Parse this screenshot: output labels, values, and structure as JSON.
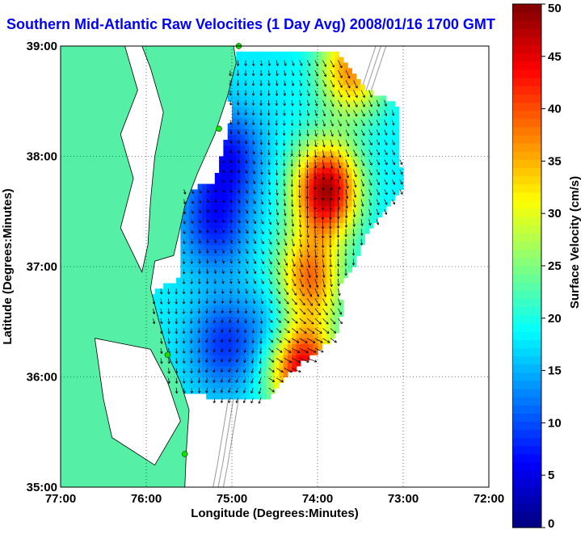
{
  "title": "Southern Mid-Atlantic Raw Velocities (1 Day Avg) 2008/01/16 1700 GMT",
  "colors": {
    "title": "#0000ff",
    "land": "#55f0a5",
    "coast": "#000000",
    "bathymetry": "#999999",
    "station": "#11dd00"
  },
  "chart_data": {
    "type": "heatmap",
    "title": "Southern Mid-Atlantic Raw Velocities (1 Day Avg) 2008/01/16 1700 GMT",
    "xlabel": "Longitude (Degrees:Minutes)",
    "ylabel": "Latitude (Degrees:Minutes)",
    "xlim": [
      -77,
      -72
    ],
    "ylim": [
      35,
      39
    ],
    "xticks": [
      {
        "value": -77,
        "label": "77:00"
      },
      {
        "value": -76,
        "label": "76:00"
      },
      {
        "value": -75,
        "label": "75:00"
      },
      {
        "value": -74,
        "label": "74:00"
      },
      {
        "value": -73,
        "label": "73:00"
      },
      {
        "value": -72,
        "label": "72:00"
      }
    ],
    "yticks": [
      {
        "value": 35,
        "label": "35:00"
      },
      {
        "value": 36,
        "label": "36:00"
      },
      {
        "value": 37,
        "label": "37:00"
      },
      {
        "value": 38,
        "label": "38:00"
      },
      {
        "value": 39,
        "label": "39:00"
      }
    ],
    "grid": true,
    "colorbar": {
      "label": "Surface Velocity (cm/s)",
      "range": [
        0,
        50
      ],
      "ticks": [
        0,
        5,
        10,
        15,
        20,
        25,
        30,
        35,
        40,
        45,
        50
      ],
      "colormap": "jet"
    },
    "coverage_lon_lat": [
      [
        -74.9,
        38.95
      ],
      [
        -73.8,
        38.95
      ],
      [
        -73.5,
        38.65
      ],
      [
        -73.05,
        38.45
      ],
      [
        -73.05,
        38.1
      ],
      [
        -73.0,
        37.7
      ],
      [
        -73.4,
        37.35
      ],
      [
        -73.55,
        37.05
      ],
      [
        -73.75,
        36.8
      ],
      [
        -73.7,
        36.6
      ],
      [
        -73.8,
        36.35
      ],
      [
        -74.4,
        36.0
      ],
      [
        -74.6,
        35.8
      ],
      [
        -75.0,
        35.78
      ],
      [
        -75.7,
        35.88
      ],
      [
        -75.9,
        36.3
      ],
      [
        -75.95,
        36.75
      ],
      [
        -75.6,
        36.9
      ],
      [
        -75.6,
        37.7
      ],
      [
        -75.2,
        37.75
      ],
      [
        -75.0,
        38.4
      ],
      [
        -75.1,
        38.8
      ]
    ],
    "velocity_maxima": [
      {
        "lon": -73.9,
        "lat": 37.7,
        "speed_cm_s": 48
      },
      {
        "lon": -74.2,
        "lat": 36.1,
        "speed_cm_s": 47
      },
      {
        "lon": -73.6,
        "lat": 38.8,
        "speed_cm_s": 37
      },
      {
        "lon": -74.1,
        "lat": 36.9,
        "speed_cm_s": 38
      }
    ],
    "velocity_minima": [
      {
        "lon": -75.05,
        "lat": 38.0,
        "speed_cm_s": 7
      },
      {
        "lon": -75.2,
        "lat": 37.4,
        "speed_cm_s": 8
      },
      {
        "lon": -75.1,
        "lat": 36.3,
        "speed_cm_s": 9
      },
      {
        "lon": -74.45,
        "lat": 36.4,
        "speed_cm_s": 11
      }
    ],
    "background_speed_cm_s": 18,
    "current_direction": "southward along shelf, turning offshore near 36:00"
  }
}
